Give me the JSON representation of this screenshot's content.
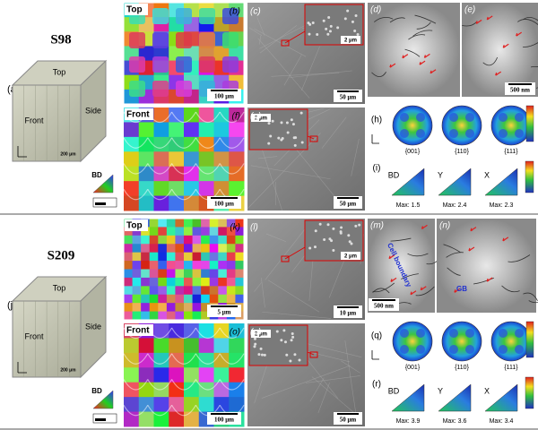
{
  "samples": [
    {
      "name": "S98",
      "cube": {
        "label": "(a)",
        "top": "Top",
        "side": "Side",
        "front": "Front",
        "scale": "200 μm"
      },
      "ipf_key": "BD",
      "ebsd_top": {
        "label": "(b)",
        "view": "Top",
        "scale": "100 μm"
      },
      "sem_top": {
        "label": "(c)",
        "inset_scale": "2 μm",
        "scale": "50 μm"
      },
      "tem": [
        {
          "label": "(d)"
        },
        {
          "label": "(e)",
          "scale": "500 nm"
        }
      ],
      "ebsd_front": {
        "label": "(f)",
        "view": "Front",
        "scale": "100 μm"
      },
      "sem_front": {
        "label": "(g)",
        "inset_scale": "2 μm",
        "scale": "50 μm"
      },
      "pole": {
        "label": "(h)",
        "planes": [
          "{001}",
          "{110}",
          "{111}"
        ]
      },
      "ipf": {
        "label": "(i)",
        "directions": [
          "BD",
          "Y",
          "X"
        ],
        "maxima": [
          "Max: 1.5",
          "Max: 2.4",
          "Max: 2.3"
        ]
      }
    },
    {
      "name": "S209",
      "cube": {
        "label": "(j)",
        "top": "Top",
        "side": "Side",
        "front": "Front",
        "scale": "200 μm"
      },
      "ipf_key": "BD",
      "ebsd_top": {
        "label": "(k)",
        "view": "Top",
        "scale": "5 μm"
      },
      "sem_top": {
        "label": "(l)",
        "inset_scale": "2 μm",
        "scale": "10 μm"
      },
      "tem": [
        {
          "label": "(m)",
          "scale": "500 nm",
          "annotation": "Cell boundary"
        },
        {
          "label": "(n)",
          "annotation": "GB"
        }
      ],
      "ebsd_front": {
        "label": "(o)",
        "view": "Front",
        "scale": "100 μm"
      },
      "sem_front": {
        "label": "(p)",
        "inset_scale": "2 μm",
        "scale": "50 μm"
      },
      "pole": {
        "label": "(q)",
        "planes": [
          "{001}",
          "{110}",
          "{111}"
        ]
      },
      "ipf": {
        "label": "(r)",
        "directions": [
          "BD",
          "Y",
          "X"
        ],
        "maxima": [
          "Max: 3.9",
          "Max: 3.6",
          "Max: 3.4"
        ]
      }
    }
  ]
}
